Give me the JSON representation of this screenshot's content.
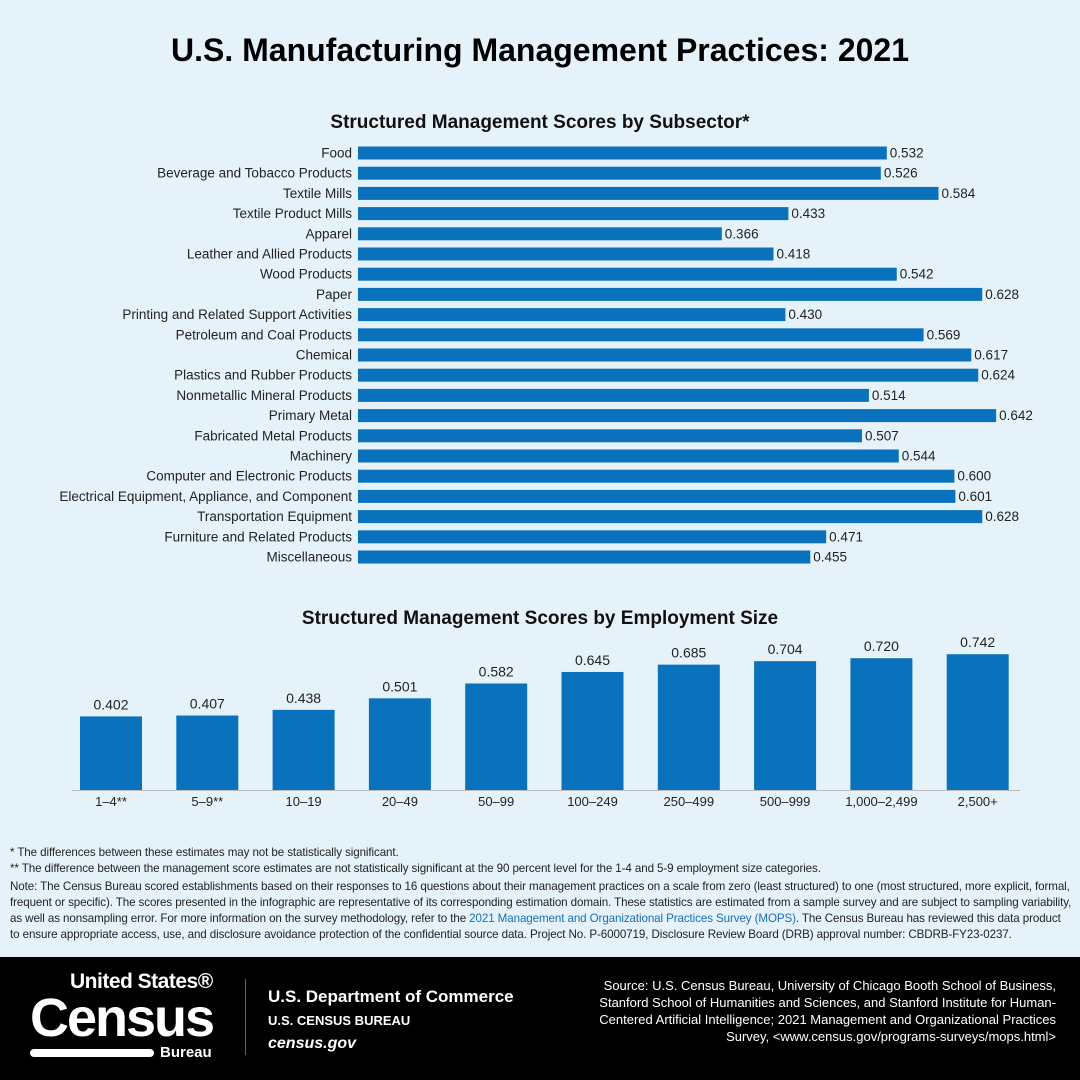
{
  "title": "U.S. Manufacturing Management Practices: 2021",
  "colors": {
    "bar": "#0a72bd",
    "background": "#e6f2fa",
    "footer": "#000000"
  },
  "chart_data": [
    {
      "type": "bar",
      "orientation": "horizontal",
      "title": "Structured Management Scores by Subsector*",
      "categories": [
        "Food",
        "Beverage and Tobacco Products",
        "Textile Mills",
        "Textile Product Mills",
        "Apparel",
        "Leather and Allied Products",
        "Wood Products",
        "Paper",
        "Printing and Related Support Activities",
        "Petroleum and Coal Products",
        "Chemical",
        "Plastics and Rubber Products",
        "Nonmetallic Mineral Products",
        "Primary Metal",
        "Fabricated Metal Products",
        "Machinery",
        "Computer and Electronic Products",
        "Electrical Equipment, Appliance, and Component",
        "Transportation Equipment",
        "Furniture and Related Products",
        "Miscellaneous"
      ],
      "values": [
        0.532,
        0.526,
        0.584,
        0.433,
        0.366,
        0.418,
        0.542,
        0.628,
        0.43,
        0.569,
        0.617,
        0.624,
        0.514,
        0.642,
        0.507,
        0.544,
        0.6,
        0.601,
        0.628,
        0.471,
        0.455
      ],
      "labels": [
        "0.532",
        "0.526",
        "0.584",
        "0.433",
        "0.366",
        "0.418",
        "0.542",
        "0.628",
        "0.430",
        "0.569",
        "0.617",
        "0.624",
        "0.514",
        "0.642",
        "0.507",
        "0.544",
        "0.600",
        "0.601",
        "0.628",
        "0.471",
        "0.455"
      ]
    },
    {
      "type": "bar",
      "orientation": "vertical",
      "title": "Structured Management Scores by Employment Size",
      "categories": [
        "1–4**",
        "5–9**",
        "10–19",
        "20–49",
        "50–99",
        "100–249",
        "250–499",
        "500–999",
        "1,000–2,499",
        "2,500+"
      ],
      "values": [
        0.402,
        0.407,
        0.438,
        0.501,
        0.582,
        0.645,
        0.685,
        0.704,
        0.72,
        0.742
      ],
      "labels": [
        "0.402",
        "0.407",
        "0.438",
        "0.501",
        "0.582",
        "0.645",
        "0.685",
        "0.704",
        "0.720",
        "0.742"
      ]
    }
  ],
  "notes": {
    "n1": "* The differences between these estimates may not be statistically significant.",
    "n2": "** The difference between the management score estimates are not statistically significant at the 90 percent level for the 1-4 and 5-9 employment size categories.",
    "n3a": "Note: The Census Bureau scored establishments based on their responses to 16 questions about their management practices on a scale from zero (least structured) to one (most structured, more explicit, formal, frequent or specific). The scores presented in the infographic are representative of its corresponding estimation domain. These statistics are estimated from a sample survey and are subject to sampling variability, as well as nonsampling error. For more information on the survey methodology, refer to the ",
    "link": "2021 Management and Organizational Practices Survey (MOPS)",
    "n3b": ". The Census Bureau has reviewed this data product to ensure appropriate access, use, and disclosure avoidance protection of the confidential source data. Project No. P-6000719, Disclosure Review Board (DRB) approval number: CBDRB-FY23-0237."
  },
  "footer": {
    "logo": {
      "line1": "United States®",
      "line2": "Census",
      "line3": "Bureau"
    },
    "dept": "U.S. Department of Commerce",
    "bureau": "U.S. CENSUS BUREAU",
    "site": "census.gov",
    "source": "Source: U.S. Census Bureau, University of Chicago Booth School of Business, Stanford School of Humanities and Sciences, and Stanford Institute for Human-Centered Artificial Intelligence; 2021 Management and Organizational Practices Survey, <www.census.gov/programs-surveys/mops.html>"
  }
}
